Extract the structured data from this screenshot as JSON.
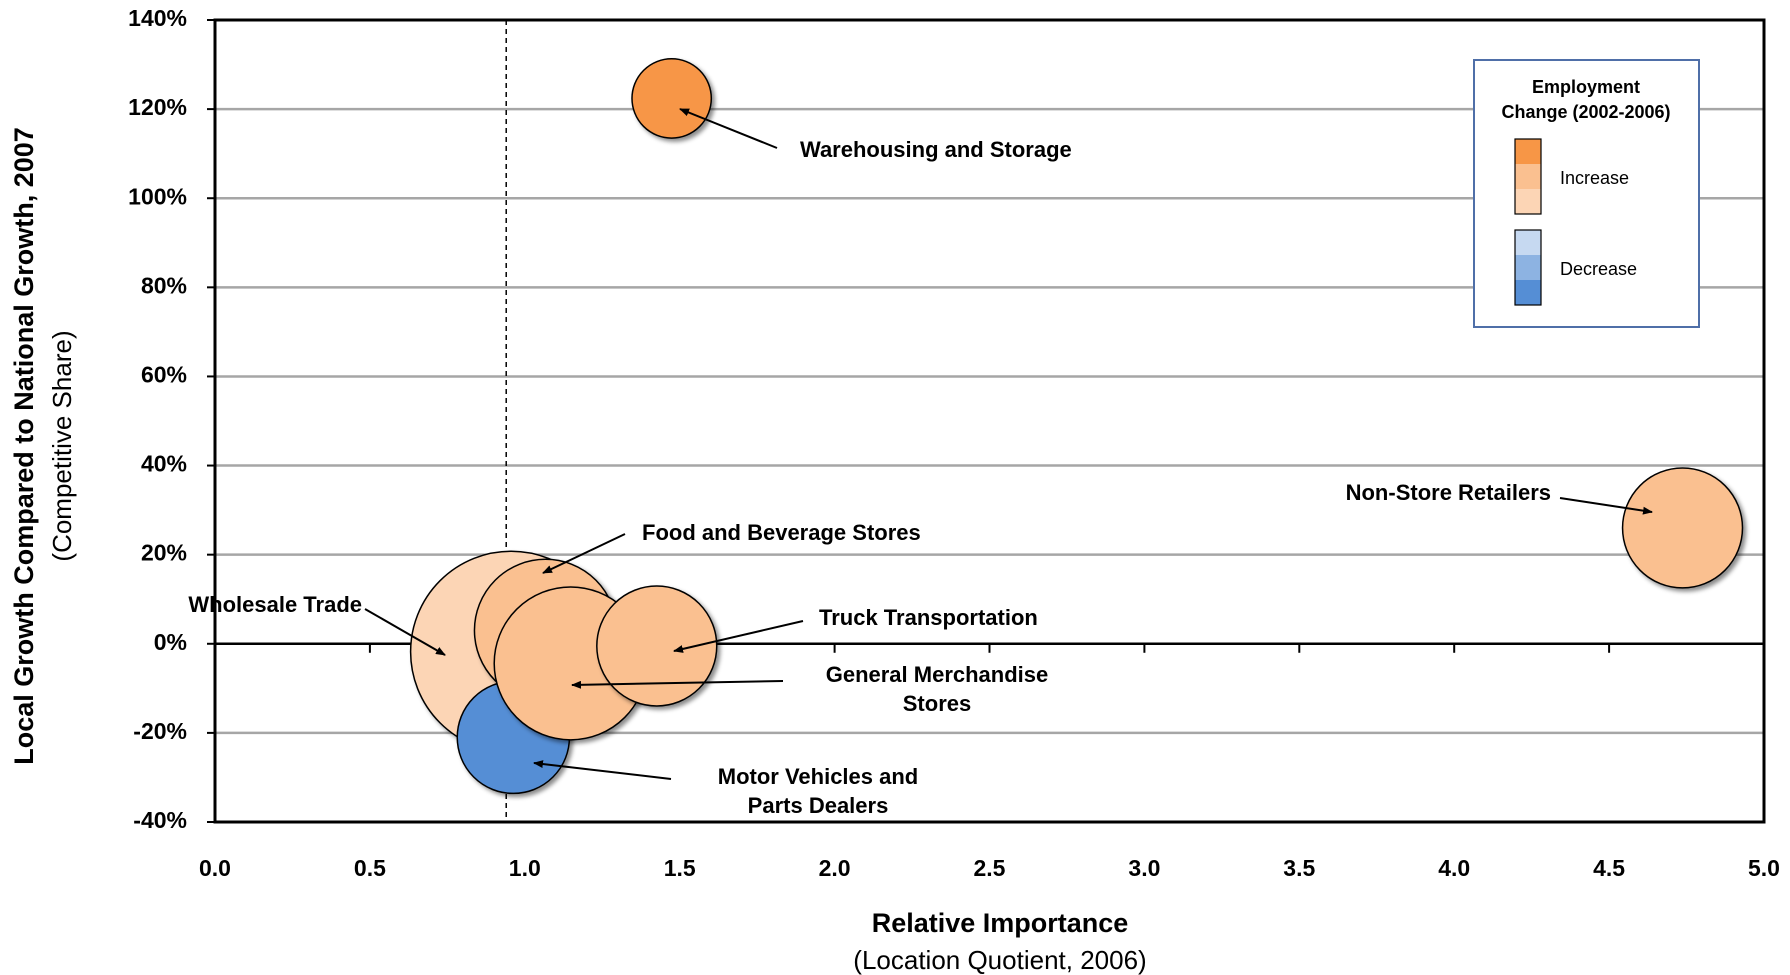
{
  "chart_data": {
    "type": "bubble",
    "x_label": "Relative Importance",
    "x_sublabel": "(Location Quotient, 2006)",
    "y_label": "Local Growth Compared to National Growth, 2007",
    "y_sublabel": "(Competitive Share)",
    "xlim": [
      0,
      5
    ],
    "ylim": [
      -40,
      140
    ],
    "xticks": [
      {
        "value": 0,
        "label": "0.0"
      },
      0.5,
      {
        "value": 1,
        "label": "1.0"
      },
      1.5,
      {
        "value": 2,
        "label": "2.0"
      },
      2.5,
      {
        "value": 3,
        "label": "3.0"
      },
      3.5,
      {
        "value": 4,
        "label": "4.0"
      },
      4.5,
      {
        "value": 5,
        "label": "5.0"
      }
    ],
    "yticks": [
      {
        "value": -40,
        "label": "-40%"
      },
      {
        "value": -20,
        "label": "-20%"
      },
      {
        "value": 0,
        "label": "0%"
      },
      {
        "value": 20,
        "label": "20%"
      },
      {
        "value": 40,
        "label": "40%"
      },
      {
        "value": 60,
        "label": "60%"
      },
      {
        "value": 80,
        "label": "80%"
      },
      {
        "value": 100,
        "label": "100%"
      },
      {
        "value": 120,
        "label": "120%"
      },
      {
        "value": 140,
        "label": "140%"
      }
    ],
    "grid": true,
    "reference_x": 0.94,
    "points": [
      {
        "label": [
          "Wholesale Trade"
        ],
        "x": 0.956,
        "y": -1.8,
        "size": 90,
        "color": "#fcd5b5"
      },
      {
        "label": [
          "Food and Beverage Stores"
        ],
        "x": 1.067,
        "y": 3,
        "size": 45,
        "color": "#fac090"
      },
      {
        "label": [
          "Motor Vehicles and",
          "Parts Dealers"
        ],
        "x": 0.963,
        "y": -21,
        "size": 28,
        "color": "#558ed5"
      },
      {
        "label": [
          "General Merchandise",
          "Stores"
        ],
        "x": 1.148,
        "y": -4.4,
        "size": 52,
        "color": "#fac090"
      },
      {
        "label": [
          "Truck Transportation"
        ],
        "x": 1.426,
        "y": -0.5,
        "size": 32,
        "color": "#fac090"
      },
      {
        "label": [
          "Warehousing and Storage"
        ],
        "x": 1.474,
        "y": 122.4,
        "size": 14,
        "color": "#f79646"
      },
      {
        "label": [
          "Non-Store Retailers"
        ],
        "x": 4.737,
        "y": 26,
        "size": 32,
        "color": "#fac090"
      }
    ],
    "legend": {
      "title": [
        "Employment",
        "Change (2002-2006)"
      ],
      "entries": [
        {
          "label": "Increase",
          "colors": [
            "#f79646",
            "#fac090",
            "#fcd5b5"
          ]
        },
        {
          "label": "Decrease",
          "colors": [
            "#c6d9f1",
            "#8db3e2",
            "#558ed5"
          ]
        }
      ]
    }
  }
}
